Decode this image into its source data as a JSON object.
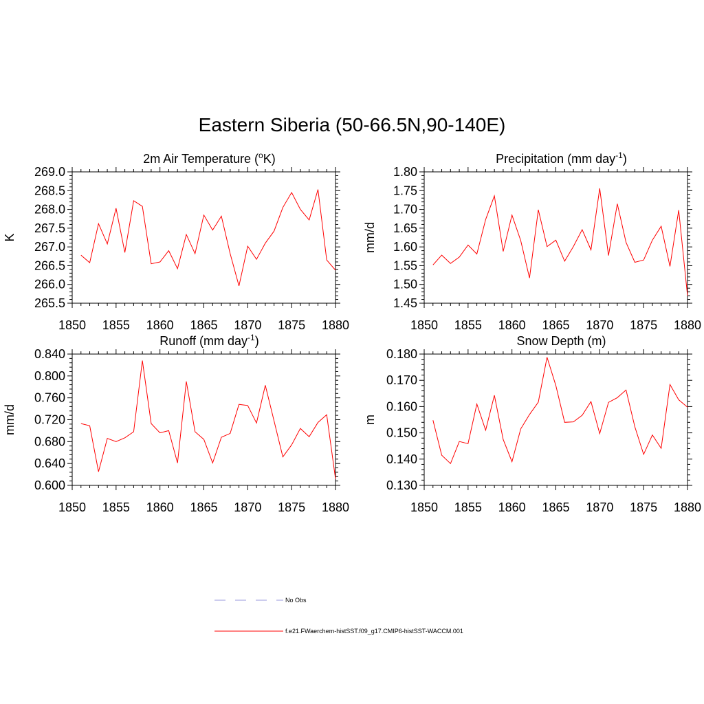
{
  "title": "Eastern Siberia (50-66.5N,90-140E)",
  "line_color": "#ff0000",
  "obs_color": "#9999dd",
  "legend": {
    "obs_label": "No Obs",
    "model_label": "f.e21.FWaerchem-histSST.f09_g17.CMIP6-histSST-WACCM.001"
  },
  "chart_data": [
    {
      "type": "line",
      "title_main": "2m Air Temperature (",
      "title_sup": "o",
      "title_end": "K)",
      "ylabel": "K",
      "xlim": [
        1850,
        1880
      ],
      "xticks": [
        1850,
        1855,
        1860,
        1865,
        1870,
        1875,
        1880
      ],
      "ylim": [
        265.5,
        269.0
      ],
      "yticks": [
        "265.5",
        "266.0",
        "266.5",
        "267.0",
        "267.5",
        "268.0",
        "268.5",
        "269.0"
      ],
      "x": [
        1851,
        1852,
        1853,
        1854,
        1855,
        1856,
        1857,
        1858,
        1859,
        1860,
        1861,
        1862,
        1863,
        1864,
        1865,
        1866,
        1867,
        1868,
        1869,
        1870,
        1871,
        1872,
        1873,
        1874,
        1875,
        1876,
        1877,
        1878,
        1879,
        1880
      ],
      "values": [
        266.78,
        266.58,
        267.62,
        267.08,
        268.03,
        266.85,
        268.23,
        268.08,
        266.55,
        266.6,
        266.9,
        266.42,
        267.33,
        266.82,
        267.85,
        267.45,
        267.82,
        266.82,
        265.96,
        267.02,
        266.67,
        267.1,
        267.42,
        268.05,
        268.45,
        268.0,
        267.72,
        268.53,
        266.65,
        266.38
      ]
    },
    {
      "type": "line",
      "title_main": "Precipitation (mm day",
      "title_sup": "-1",
      "title_end": ")",
      "ylabel": "mm/d",
      "xlim": [
        1850,
        1880
      ],
      "xticks": [
        1850,
        1855,
        1860,
        1865,
        1870,
        1875,
        1880
      ],
      "ylim": [
        1.45,
        1.8
      ],
      "yticks": [
        "1.45",
        "1.50",
        "1.55",
        "1.60",
        "1.65",
        "1.70",
        "1.75",
        "1.80"
      ],
      "x": [
        1851,
        1852,
        1853,
        1854,
        1855,
        1856,
        1857,
        1858,
        1859,
        1860,
        1861,
        1862,
        1863,
        1864,
        1865,
        1866,
        1867,
        1868,
        1869,
        1870,
        1871,
        1872,
        1873,
        1874,
        1875,
        1876,
        1877,
        1878,
        1879,
        1880
      ],
      "values": [
        1.552,
        1.578,
        1.556,
        1.573,
        1.605,
        1.581,
        1.673,
        1.736,
        1.588,
        1.685,
        1.617,
        1.517,
        1.699,
        1.601,
        1.618,
        1.562,
        1.601,
        1.646,
        1.592,
        1.756,
        1.577,
        1.715,
        1.612,
        1.559,
        1.565,
        1.618,
        1.655,
        1.548,
        1.698,
        1.47
      ]
    },
    {
      "type": "line",
      "title_main": "Runoff (mm day",
      "title_sup": "-1",
      "title_end": ")",
      "ylabel": "mm/d",
      "xlim": [
        1850,
        1880
      ],
      "xticks": [
        1850,
        1855,
        1860,
        1865,
        1870,
        1875,
        1880
      ],
      "ylim": [
        0.6,
        0.84
      ],
      "yticks": [
        "0.600",
        "0.640",
        "0.680",
        "0.720",
        "0.760",
        "0.800",
        "0.840"
      ],
      "x": [
        1851,
        1852,
        1853,
        1854,
        1855,
        1856,
        1857,
        1858,
        1859,
        1860,
        1861,
        1862,
        1863,
        1864,
        1865,
        1866,
        1867,
        1868,
        1869,
        1870,
        1871,
        1872,
        1873,
        1874,
        1875,
        1876,
        1877,
        1878,
        1879,
        1880
      ],
      "values": [
        0.713,
        0.709,
        0.625,
        0.686,
        0.68,
        0.687,
        0.698,
        0.828,
        0.713,
        0.696,
        0.7,
        0.641,
        0.79,
        0.698,
        0.684,
        0.641,
        0.688,
        0.695,
        0.748,
        0.746,
        0.714,
        0.783,
        0.718,
        0.652,
        0.674,
        0.704,
        0.689,
        0.715,
        0.729,
        0.612
      ]
    },
    {
      "type": "line",
      "title_main": "Snow Depth (m)",
      "title_sup": "",
      "title_end": "",
      "ylabel": "m",
      "xlim": [
        1850,
        1880
      ],
      "xticks": [
        1850,
        1855,
        1860,
        1865,
        1870,
        1875,
        1880
      ],
      "ylim": [
        0.13,
        0.18
      ],
      "yticks": [
        "0.130",
        "0.140",
        "0.150",
        "0.160",
        "0.170",
        "0.180"
      ],
      "x": [
        1851,
        1852,
        1853,
        1854,
        1855,
        1856,
        1857,
        1858,
        1859,
        1860,
        1861,
        1862,
        1863,
        1864,
        1865,
        1866,
        1867,
        1868,
        1869,
        1870,
        1871,
        1872,
        1873,
        1874,
        1875,
        1876,
        1877,
        1878,
        1879,
        1880
      ],
      "values": [
        0.1548,
        0.1415,
        0.1383,
        0.1467,
        0.1459,
        0.161,
        0.151,
        0.1643,
        0.1475,
        0.139,
        0.1515,
        0.157,
        0.1617,
        0.1788,
        0.168,
        0.154,
        0.1542,
        0.1567,
        0.1619,
        0.1497,
        0.1616,
        0.1634,
        0.1663,
        0.1523,
        0.1418,
        0.1492,
        0.1441,
        0.1684,
        0.1626,
        0.1598
      ]
    }
  ]
}
